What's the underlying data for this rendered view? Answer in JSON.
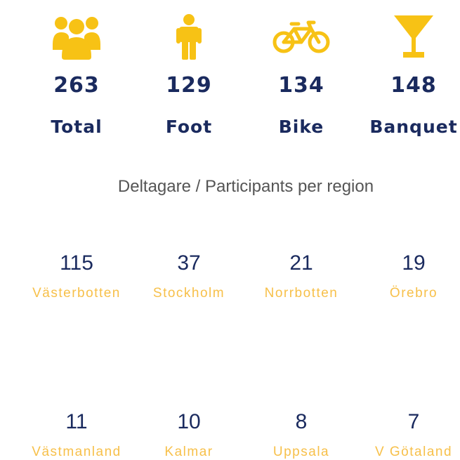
{
  "stats": [
    {
      "icon": "people-group-icon",
      "value": "263",
      "label": "Total"
    },
    {
      "icon": "person-icon",
      "value": "129",
      "label": "Foot"
    },
    {
      "icon": "bicycle-icon",
      "value": "134",
      "label": "Bike"
    },
    {
      "icon": "cocktail-glass-icon",
      "value": "148",
      "label": "Banquet"
    }
  ],
  "section_title": "Deltagare / Participants per region",
  "regions": [
    {
      "count": "115",
      "name": "Västerbotten"
    },
    {
      "count": "37",
      "name": "Stockholm"
    },
    {
      "count": "21",
      "name": "Norrbotten"
    },
    {
      "count": "19",
      "name": "Örebro"
    },
    {
      "count": "11",
      "name": "Västmanland"
    },
    {
      "count": "10",
      "name": "Kalmar"
    },
    {
      "count": "8",
      "name": "Uppsala"
    },
    {
      "count": "7",
      "name": "V Götaland"
    }
  ],
  "colors": {
    "accent": "#f7c215",
    "number": "#1a2a5e",
    "region_label": "#f7c04a",
    "title": "#555555"
  }
}
